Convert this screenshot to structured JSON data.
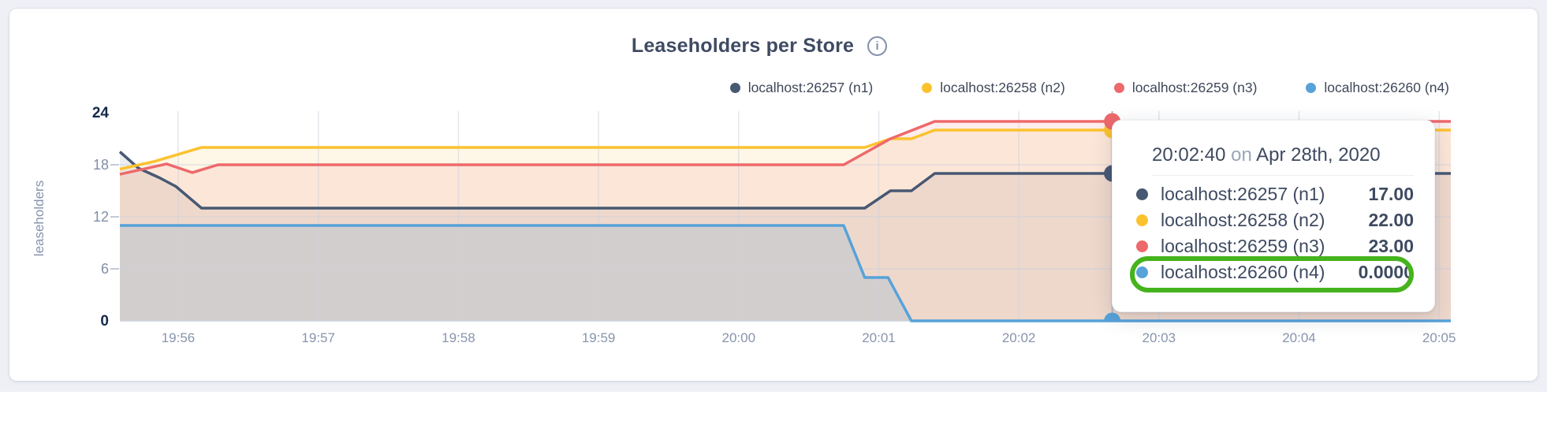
{
  "header": {
    "title": "Leaseholders per Store",
    "info_icon_glyph": "i"
  },
  "chart_data": {
    "type": "area",
    "title": "Leaseholders per Store",
    "xlabel": "",
    "ylabel": "leaseholders",
    "ylim": [
      0,
      24
    ],
    "y_ticks": [
      0,
      6,
      12,
      18,
      24
    ],
    "y_ticks_emphasized": [
      0,
      24
    ],
    "grid": true,
    "legend_position": "top-right",
    "x_tick_labels": [
      "19:56",
      "19:57",
      "19:58",
      "19:59",
      "20:00",
      "20:01",
      "20:02",
      "20:03",
      "20:04",
      "20:05"
    ],
    "x_tick_seconds": [
      25,
      85,
      145,
      205,
      265,
      325,
      385,
      445,
      505,
      565
    ],
    "x_domain_seconds": [
      0,
      570
    ],
    "series": [
      {
        "name": "localhost:26257 (n1)",
        "color": "#475872",
        "fill": "rgba(78,90,115,0.10)",
        "points": [
          [
            0,
            19.5
          ],
          [
            8,
            17.6
          ],
          [
            17,
            16.5
          ],
          [
            24,
            15.5
          ],
          [
            35,
            13
          ],
          [
            319,
            13
          ],
          [
            330,
            15
          ],
          [
            339,
            15
          ],
          [
            349,
            17
          ],
          [
            570,
            17
          ]
        ]
      },
      {
        "name": "localhost:26258 (n2)",
        "color": "#fcc22e",
        "fill": "rgba(251,197,70,0.13)",
        "points": [
          [
            0,
            17.5
          ],
          [
            15,
            18.4
          ],
          [
            35,
            20
          ],
          [
            319,
            20
          ],
          [
            330,
            21
          ],
          [
            339,
            21
          ],
          [
            349,
            22
          ],
          [
            570,
            22
          ]
        ]
      },
      {
        "name": "localhost:26259 (n3)",
        "color": "#ed696b",
        "fill": "rgba(237,105,107,0.12)",
        "points": [
          [
            0,
            16.9
          ],
          [
            20,
            18.1
          ],
          [
            31,
            17.1
          ],
          [
            42,
            18
          ],
          [
            310,
            18
          ],
          [
            330,
            21
          ],
          [
            349,
            23
          ],
          [
            570,
            23
          ]
        ]
      },
      {
        "name": "localhost:26260 (n4)",
        "color": "#57a2d9",
        "fill": "rgba(87,162,217,0.18)",
        "points": [
          [
            0,
            11
          ],
          [
            310,
            11
          ],
          [
            319,
            5
          ],
          [
            329,
            5
          ],
          [
            339,
            0
          ],
          [
            570,
            0
          ]
        ]
      }
    ],
    "hover": {
      "t_seconds": 425,
      "time": "20:02:40",
      "date": "Apr 28th, 2020",
      "values": [
        17,
        22,
        23,
        0
      ]
    }
  },
  "tooltip": {
    "time": "20:02:40",
    "separator_word": "on",
    "date": "Apr 28th, 2020",
    "rows": [
      {
        "label": "localhost:26257 (n1)",
        "value": "17.00",
        "highlighted": false
      },
      {
        "label": "localhost:26258 (n2)",
        "value": "22.00",
        "highlighted": false
      },
      {
        "label": "localhost:26259 (n3)",
        "value": "23.00",
        "highlighted": false
      },
      {
        "label": "localhost:26260 (n4)",
        "value": "0.0000",
        "highlighted": true
      }
    ],
    "highlight_color": "#45b31c"
  },
  "colors": {
    "page_background": "#eef0f6",
    "card_background": "#ffffff",
    "title_text": "#3f4b63",
    "axis_emphasized": "#16294b",
    "axis_muted": "#8090a8",
    "time_labels": "#8795ac",
    "gridline": "#ccd2dd",
    "hover_line": "#b3bcca"
  }
}
